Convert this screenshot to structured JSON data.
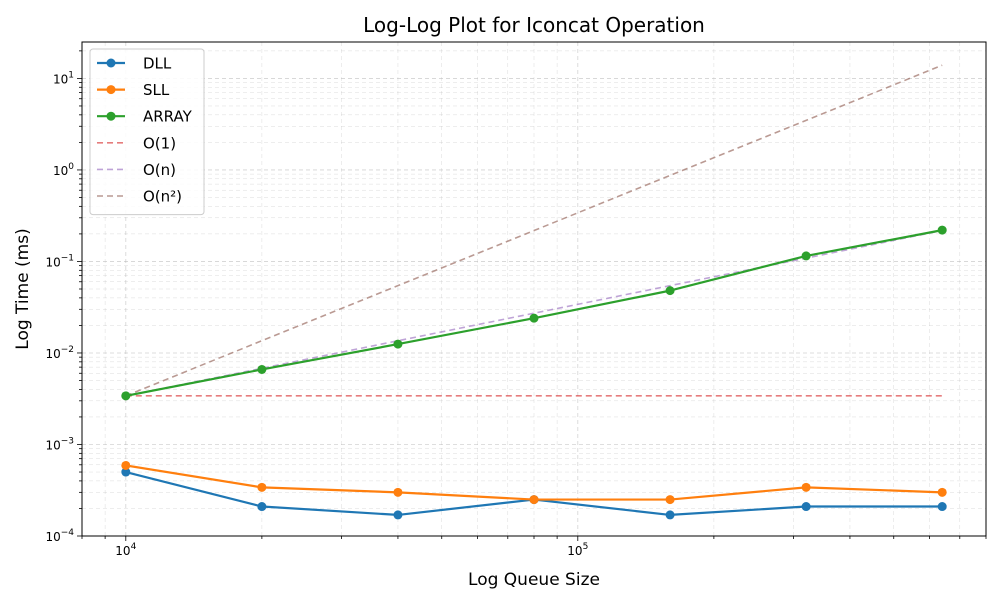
{
  "chart_data": {
    "type": "line",
    "title": "Log-Log Plot for Iconcat Operation",
    "xlabel": "Log Queue Size",
    "ylabel": "Log Time (ms)",
    "xscale": "log",
    "yscale": "log",
    "xlim": [
      8000,
      800000
    ],
    "ylim": [
      0.0001,
      25
    ],
    "grid": true,
    "legend_position": "top-left",
    "x": [
      10000,
      20000,
      40000,
      80000,
      160000,
      320000,
      640000
    ],
    "x_ticks": [
      {
        "value": 10000,
        "base": "10",
        "exp": "4"
      },
      {
        "value": 100000,
        "base": "10",
        "exp": "5"
      }
    ],
    "y_ticks": [
      {
        "value": 0.0001,
        "base": "10",
        "exp": "−4"
      },
      {
        "value": 0.001,
        "base": "10",
        "exp": "−3"
      },
      {
        "value": 0.01,
        "base": "10",
        "exp": "−2"
      },
      {
        "value": 0.1,
        "base": "10",
        "exp": "−1"
      },
      {
        "value": 1,
        "base": "10",
        "exp": "0"
      },
      {
        "value": 10,
        "base": "10",
        "exp": "1"
      }
    ],
    "series": [
      {
        "name": "DLL",
        "color": "#1f77b4",
        "style": "solid",
        "marker": true,
        "values": [
          0.0005,
          0.00021,
          0.00017,
          0.00025,
          0.00017,
          0.00021,
          0.00021
        ]
      },
      {
        "name": "SLL",
        "color": "#ff7f0e",
        "style": "solid",
        "marker": true,
        "values": [
          0.00059,
          0.00034,
          0.0003,
          0.00025,
          0.00025,
          0.00034,
          0.0003
        ]
      },
      {
        "name": "ARRAY",
        "color": "#2ca02c",
        "style": "solid",
        "marker": true,
        "values": [
          0.0034,
          0.0066,
          0.0125,
          0.024,
          0.048,
          0.115,
          0.22
        ]
      },
      {
        "name": "O(1)",
        "color": "#d62728",
        "style": "dashed",
        "marker": false,
        "values": [
          0.0034,
          0.0034,
          0.0034,
          0.0034,
          0.0034,
          0.0034,
          0.0034
        ]
      },
      {
        "name": "O(n)",
        "color": "#9467bd",
        "style": "dashed",
        "marker": false,
        "values": [
          0.0034,
          0.0068,
          0.0136,
          0.0272,
          0.0544,
          0.1088,
          0.2176
        ]
      },
      {
        "name": "O(n²)",
        "color": "#8c564b",
        "style": "dashed",
        "marker": false,
        "values": [
          0.0034,
          0.0136,
          0.0544,
          0.2176,
          0.8704,
          3.4816,
          13.93
        ]
      }
    ]
  }
}
